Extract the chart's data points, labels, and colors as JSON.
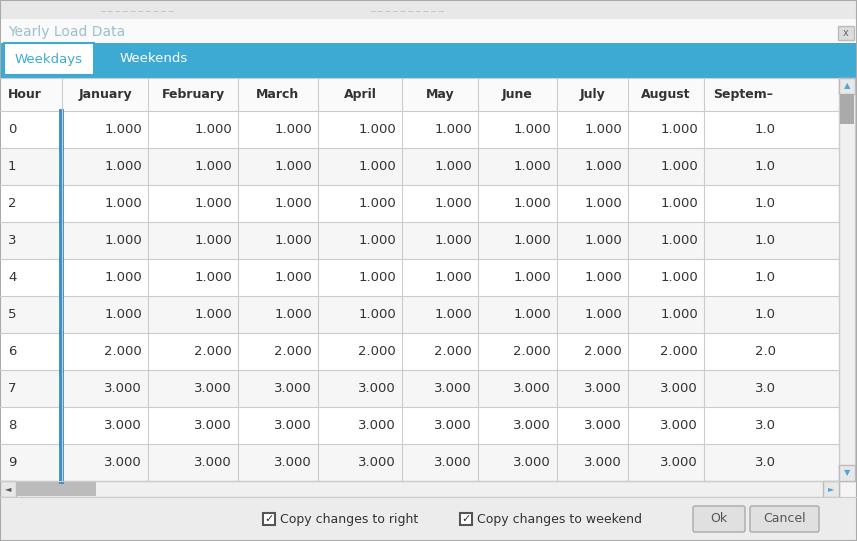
{
  "title": "Yearly Load Data",
  "tab_weekdays": "Weekdays",
  "tab_weekends": "Weekends",
  "columns": [
    "Hour",
    "January",
    "February",
    "March",
    "April",
    "May",
    "June",
    "July",
    "August",
    "Septem–"
  ],
  "hours": [
    0,
    1,
    2,
    3,
    4,
    5,
    6,
    7,
    8,
    9
  ],
  "row_values": [
    [
      1.0,
      1.0,
      1.0,
      1.0,
      1.0,
      1.0,
      1.0,
      1.0,
      1.0
    ],
    [
      1.0,
      1.0,
      1.0,
      1.0,
      1.0,
      1.0,
      1.0,
      1.0,
      1.0
    ],
    [
      1.0,
      1.0,
      1.0,
      1.0,
      1.0,
      1.0,
      1.0,
      1.0,
      1.0
    ],
    [
      1.0,
      1.0,
      1.0,
      1.0,
      1.0,
      1.0,
      1.0,
      1.0,
      1.0
    ],
    [
      1.0,
      1.0,
      1.0,
      1.0,
      1.0,
      1.0,
      1.0,
      1.0,
      1.0
    ],
    [
      1.0,
      1.0,
      1.0,
      1.0,
      1.0,
      1.0,
      1.0,
      1.0,
      1.0
    ],
    [
      2.0,
      2.0,
      2.0,
      2.0,
      2.0,
      2.0,
      2.0,
      2.0,
      2.0
    ],
    [
      3.0,
      3.0,
      3.0,
      3.0,
      3.0,
      3.0,
      3.0,
      3.0,
      3.0
    ],
    [
      3.0,
      3.0,
      3.0,
      3.0,
      3.0,
      3.0,
      3.0,
      3.0,
      3.0
    ],
    [
      3.0,
      3.0,
      3.0,
      3.0,
      3.0,
      3.0,
      3.0,
      3.0,
      3.0
    ]
  ],
  "month_text_colors": [
    "#333333",
    "#333333",
    "#333333",
    "#333333",
    "#333333",
    "#333333",
    "#333333",
    "#333333",
    "#333333"
  ],
  "header_bg": "#3DAAD4",
  "tab_active_text": "#3DAAD4",
  "tab_inactive_text": "#FFFFFF",
  "cell_text_color": "#333333",
  "header_text_color": "#333333",
  "hour_col_border_color": "#3B8FC4",
  "grid_color": "#CCCCCC",
  "dialog_bg": "#F5F5F5",
  "title_color": "#9BBFCF",
  "bottom_bar_bg": "#ECECEC",
  "scrollbar_bg": "#E8E8E8",
  "scrollbar_arrow_color": "#4AAAD4",
  "ok_btn_bg": "#E0E0E0",
  "cancel_btn_bg": "#E0E0E0"
}
